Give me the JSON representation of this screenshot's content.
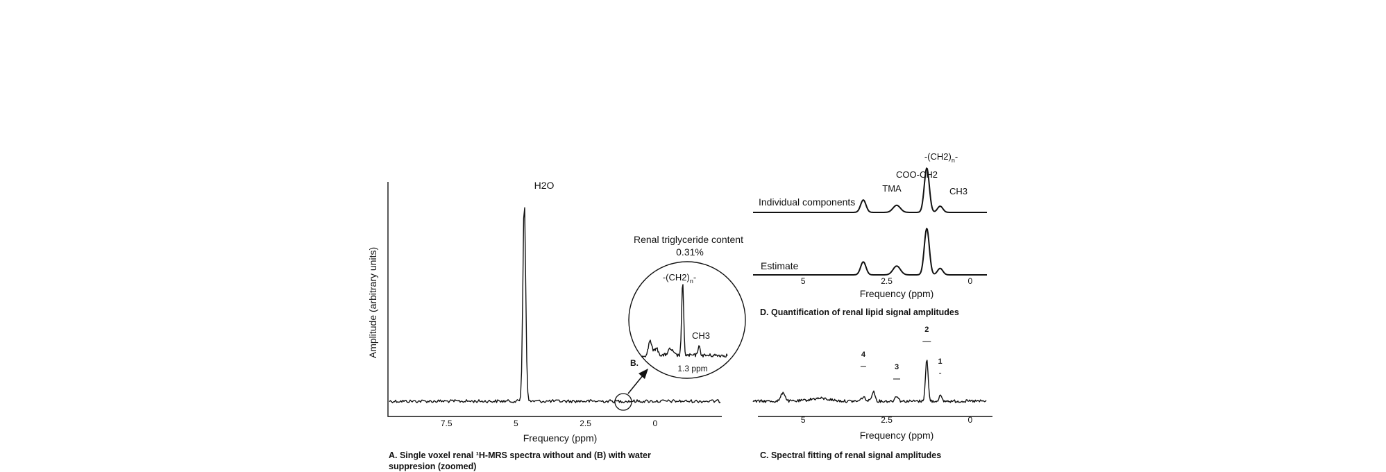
{
  "chart_data": [
    {
      "panel": "A",
      "type": "line",
      "title": "H2O",
      "xlabel": "Frequency (ppm)",
      "ylabel": "Amplitude (arbitrary units)",
      "xlim": [
        9.6,
        -2.4
      ],
      "xticks": [
        "7.5",
        "5",
        "2.5",
        "0"
      ],
      "xtick_values": [
        7.5,
        5,
        2.5,
        0
      ],
      "peaks": [
        {
          "label": "H2O",
          "ppm": 4.7,
          "height": 100
        }
      ],
      "baseline": 7,
      "caption_line1": "A. Single voxel renal ¹H-MRS spectra without and (B) with water",
      "caption_line2": "suppresion (zoomed)"
    },
    {
      "panel": "B",
      "type": "line",
      "title": "Renal triglyceride content",
      "value": "0.31%",
      "marker": "B.",
      "peak_label": "-(CH2)",
      "peak_sub": "n",
      "peak_suffix": "-",
      "secondary_label": "CH3",
      "xlabel": "1.3 ppm",
      "peaks": [
        {
          "label": "-(CH2)n-",
          "ppm": 1.3,
          "height": 100
        },
        {
          "label": "CH3",
          "ppm": 0.9,
          "height": 12
        }
      ]
    },
    {
      "panel": "C",
      "type": "line",
      "title": "C. Spectral fitting of renal signal amplitudes",
      "xlabel": "Frequency (ppm)",
      "xlim": [
        6.5,
        -0.5
      ],
      "xticks": [
        "5",
        "2.5",
        "0"
      ],
      "xtick_values": [
        5,
        2.5,
        0
      ],
      "peak_markers": [
        {
          "label": "1",
          "ppm": 0.9
        },
        {
          "label": "2",
          "ppm": 1.3
        },
        {
          "label": "3",
          "ppm": 2.2
        },
        {
          "label": "4",
          "ppm": 3.2
        }
      ]
    },
    {
      "panel": "D",
      "type": "line",
      "title": "D. Quantification of renal lipid signal amplitudes",
      "xlabel": "Frequency (ppm)",
      "xlim": [
        6.5,
        -0.5
      ],
      "xticks": [
        "5",
        "2.5",
        "0"
      ],
      "xtick_values": [
        5,
        2.5,
        0
      ],
      "series": [
        {
          "name": "Individual components",
          "peaks": [
            {
              "label": "TMA",
              "ppm": 3.2,
              "height": 28
            },
            {
              "label": "COO-CH2",
              "ppm": 2.2,
              "height": 16
            },
            {
              "label": "-(CH2)n-",
              "ppm": 1.3,
              "height": 100
            },
            {
              "label": "CH3",
              "ppm": 0.9,
              "height": 14
            }
          ]
        },
        {
          "name": "Estimate",
          "peaks": [
            {
              "ppm": 3.2,
              "height": 28
            },
            {
              "ppm": 2.2,
              "height": 19
            },
            {
              "ppm": 1.3,
              "height": 100
            },
            {
              "ppm": 0.9,
              "height": 14
            }
          ]
        }
      ],
      "labels": {
        "tma": "TMA",
        "coo": "COO-CH2",
        "ch2": "-(CH2)",
        "ch2_sub": "n",
        "ch2_suffix": "-",
        "ch3": "CH3"
      }
    }
  ]
}
